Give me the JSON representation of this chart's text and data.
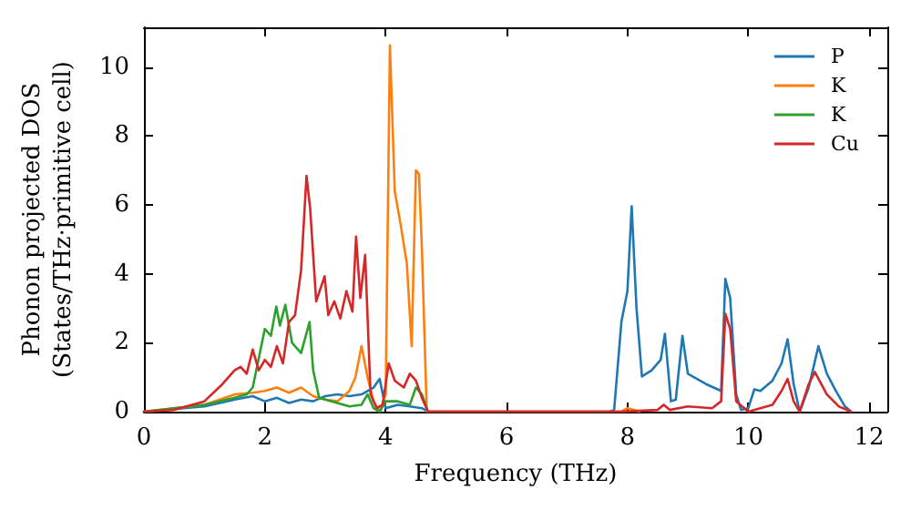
{
  "chart_data": {
    "type": "line",
    "xlabel": "Frequency (THz)",
    "ylabel": "Phonon projected DOS\n(States/THz·primitive cell)",
    "xlim": [
      0,
      12.3
    ],
    "ylim": [
      0,
      11.15
    ],
    "xticks": [
      0,
      2,
      4,
      6,
      8,
      10,
      12
    ],
    "yticks": [
      0,
      2,
      4,
      6,
      8,
      10
    ],
    "grid": false,
    "legend": "top right",
    "marker": "none",
    "line_style": "solid",
    "series": [
      {
        "name": "P",
        "color": "#1f77b4",
        "x": [
          0,
          1,
          1.5,
          1.8,
          2,
          2.2,
          2.4,
          2.6,
          2.8,
          3,
          3.2,
          3.4,
          3.6,
          3.8,
          3.9,
          4,
          4.2,
          4.4,
          4.6,
          4.7,
          7.7,
          7.78,
          7.9,
          8,
          8.07,
          8.15,
          8.24,
          8.4,
          8.55,
          8.62,
          8.72,
          8.8,
          8.91,
          9,
          9.3,
          9.55,
          9.62,
          9.7,
          9.8,
          9.88,
          10,
          10.1,
          10.2,
          10.4,
          10.55,
          10.65,
          10.75,
          10.85,
          11,
          11.16,
          11.3,
          11.45,
          11.6,
          11.7
        ],
        "values": [
          0,
          0.15,
          0.35,
          0.45,
          0.3,
          0.4,
          0.25,
          0.35,
          0.3,
          0.45,
          0.5,
          0.45,
          0.5,
          0.7,
          0.95,
          0.1,
          0.2,
          0.15,
          0.1,
          0,
          0,
          0.05,
          2.6,
          3.5,
          5.96,
          3,
          1.02,
          1.2,
          1.5,
          2.26,
          0.3,
          0.35,
          2.2,
          1.1,
          0.8,
          0.6,
          3.85,
          3.3,
          0.5,
          0.05,
          0.1,
          0.65,
          0.6,
          0.9,
          1.4,
          2.1,
          0.8,
          0,
          0.7,
          1.9,
          1.1,
          0.6,
          0.15,
          0
        ]
      },
      {
        "name": "K",
        "color": "#ff7f0e",
        "x": [
          0,
          1,
          1.5,
          1.8,
          2,
          2.2,
          2.4,
          2.6,
          2.8,
          3,
          3.2,
          3.4,
          3.5,
          3.6,
          3.7,
          3.8,
          3.9,
          4,
          4.07,
          4.15,
          4.25,
          4.35,
          4.43,
          4.5,
          4.55,
          4.6,
          4.68,
          7.9,
          8,
          8.1,
          8.2
        ],
        "values": [
          0,
          0.2,
          0.5,
          0.55,
          0.6,
          0.7,
          0.55,
          0.7,
          0.45,
          0.35,
          0.3,
          0.6,
          1.0,
          1.9,
          1.0,
          0.3,
          0,
          0.5,
          10.63,
          6.4,
          5.4,
          4.3,
          1.9,
          7.0,
          6.9,
          4.7,
          0,
          0,
          0.1,
          0.05,
          0
        ]
      },
      {
        "name": "K",
        "color": "#2ca02c",
        "x": [
          0,
          1,
          1.5,
          1.7,
          1.8,
          2,
          2.1,
          2.19,
          2.25,
          2.34,
          2.45,
          2.6,
          2.74,
          2.8,
          2.9,
          3,
          3.2,
          3.4,
          3.6,
          3.7,
          3.8,
          3.9,
          4,
          4.2,
          4.4,
          4.5,
          4.6,
          4.7
        ],
        "values": [
          0,
          0.2,
          0.4,
          0.5,
          0.7,
          2.4,
          2.2,
          3.05,
          2.5,
          3.1,
          2.0,
          1.7,
          2.6,
          1.2,
          0.4,
          0.35,
          0.25,
          0.15,
          0.2,
          0.5,
          0.1,
          0,
          0.3,
          0.3,
          0.2,
          0.7,
          0.5,
          0
        ]
      },
      {
        "name": "Cu",
        "color": "#d62728",
        "x": [
          0,
          0.5,
          1,
          1.3,
          1.5,
          1.6,
          1.7,
          1.8,
          1.9,
          2,
          2.1,
          2.2,
          2.3,
          2.4,
          2.5,
          2.6,
          2.69,
          2.75,
          2.85,
          2.99,
          3.05,
          3.15,
          3.25,
          3.35,
          3.45,
          3.51,
          3.58,
          3.66,
          3.75,
          3.85,
          3.95,
          4.05,
          4.15,
          4.3,
          4.4,
          4.5,
          4.6,
          4.7,
          7.9,
          8.5,
          8.6,
          8.7,
          9,
          9.4,
          9.55,
          9.62,
          9.7,
          9.8,
          10,
          10.4,
          10.55,
          10.65,
          10.75,
          10.85,
          11,
          11.1,
          11.3,
          11.5,
          11.7
        ],
        "values": [
          0,
          0.05,
          0.3,
          0.8,
          1.2,
          1.3,
          1.1,
          1.8,
          1.2,
          1.5,
          1.3,
          1.9,
          1.4,
          2.6,
          2.8,
          4.1,
          6.84,
          5.9,
          3.2,
          3.93,
          2.8,
          3.2,
          2.7,
          3.5,
          2.9,
          5.08,
          3.3,
          4.55,
          0.5,
          0.1,
          0.2,
          1.4,
          0.9,
          0.7,
          1.1,
          0.9,
          0.4,
          0,
          0,
          0.05,
          0.2,
          0.05,
          0.15,
          0.1,
          0.3,
          2.84,
          2.4,
          0.3,
          0,
          0.2,
          0.6,
          0.95,
          0.3,
          0,
          0.8,
          1.15,
          0.5,
          0.15,
          0
        ]
      }
    ]
  }
}
